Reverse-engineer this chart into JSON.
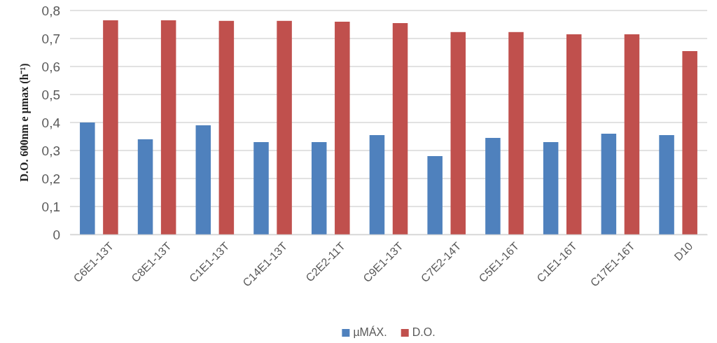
{
  "chart_data": {
    "type": "bar",
    "ylabel": "D.O. 600nm e µmax (h⁻¹)",
    "categories": [
      "C6E1-13T",
      "C8E1-13T",
      "C1E1-13T",
      "C14E1-13T",
      "C2E2-11T",
      "C9E1-13T",
      "C7E2-14T",
      "C5E1-16T",
      "C1E1-16T",
      "C17E1-16T",
      "D10"
    ],
    "series": [
      {
        "name": "µMÁX.",
        "color": "#4f81bd",
        "values": [
          0.4,
          0.34,
          0.39,
          0.33,
          0.33,
          0.355,
          0.28,
          0.345,
          0.33,
          0.36,
          0.355
        ]
      },
      {
        "name": "D.O.",
        "color": "#c0504d",
        "values": [
          0.765,
          0.765,
          0.763,
          0.763,
          0.76,
          0.755,
          0.723,
          0.723,
          0.715,
          0.715,
          0.655
        ]
      }
    ],
    "ylim": [
      0,
      0.8
    ],
    "yticks": [
      {
        "value": 0,
        "label": "0"
      },
      {
        "value": 0.1,
        "label": "0,1"
      },
      {
        "value": 0.2,
        "label": "0,2"
      },
      {
        "value": 0.3,
        "label": "0,3"
      },
      {
        "value": 0.4,
        "label": "0,4"
      },
      {
        "value": 0.5,
        "label": "0,5"
      },
      {
        "value": 0.6,
        "label": "0,6"
      },
      {
        "value": 0.7,
        "label": "0,7"
      },
      {
        "value": 0.8,
        "label": "0,8"
      }
    ],
    "grid": "y",
    "legend": "bottom"
  }
}
